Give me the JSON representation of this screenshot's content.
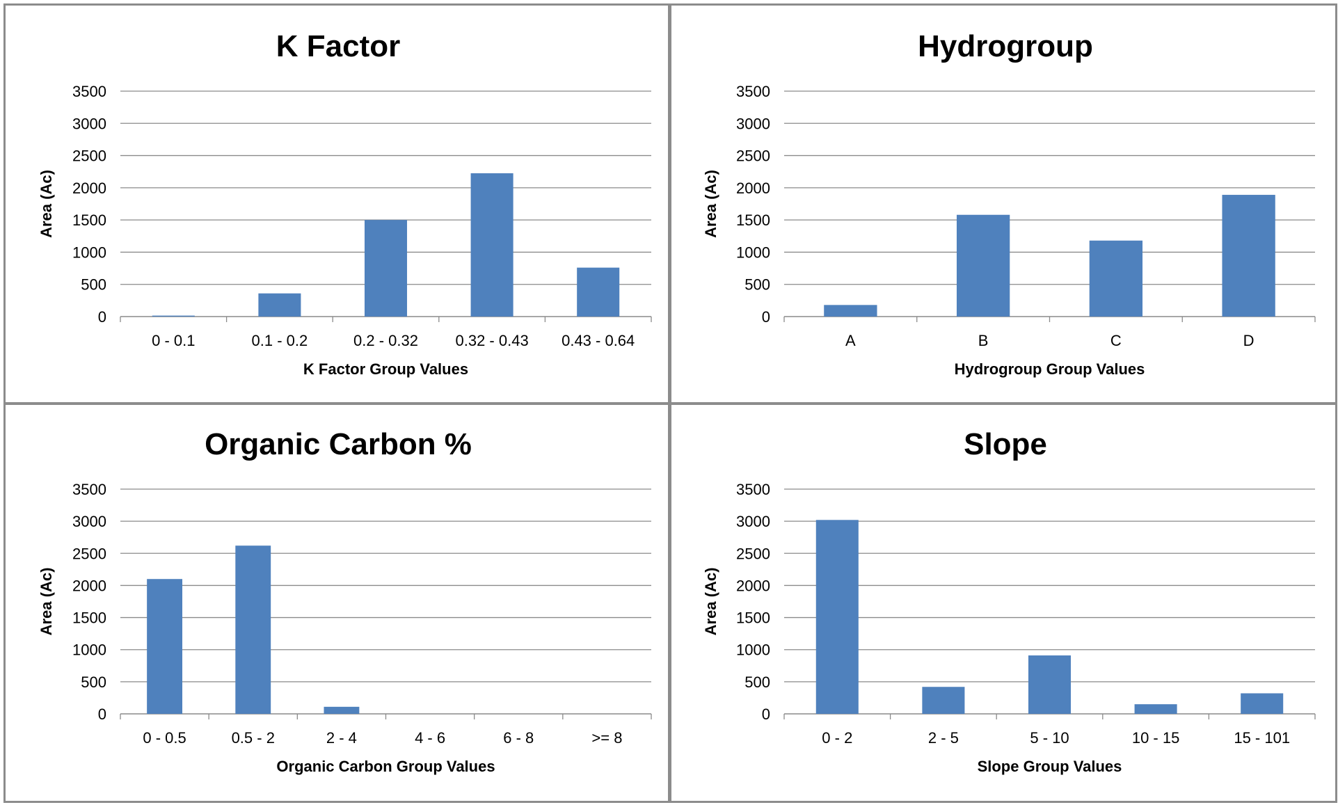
{
  "chart_data": [
    {
      "type": "bar",
      "title": "K Factor",
      "xlabel": "K Factor Group Values",
      "ylabel": "Area (Ac)",
      "categories": [
        "0 - 0.1",
        "0.1 - 0.2",
        "0.2 - 0.32",
        "0.32 - 0.43",
        "0.43 - 0.64"
      ],
      "values": [
        15,
        360,
        1500,
        2225,
        760
      ],
      "ylim": [
        0,
        3500
      ],
      "yticks": [
        "0",
        "500",
        "1000",
        "1500",
        "2000",
        "2500",
        "3000",
        "3500"
      ],
      "grid": true,
      "legend": "none",
      "bar_color": "#4f81bd"
    },
    {
      "type": "bar",
      "title": "Hydrogroup",
      "xlabel": "Hydrogroup Group Values",
      "ylabel": "Area (Ac)",
      "categories": [
        "A",
        "B",
        "C",
        "D"
      ],
      "values": [
        180,
        1580,
        1180,
        1890
      ],
      "ylim": [
        0,
        3500
      ],
      "yticks": [
        "0",
        "500",
        "1000",
        "1500",
        "2000",
        "2500",
        "3000",
        "3500"
      ],
      "grid": true,
      "legend": "none",
      "bar_color": "#4f81bd"
    },
    {
      "type": "bar",
      "title": "Organic Carbon %",
      "xlabel": "Organic Carbon Group Values",
      "ylabel": "Area (Ac)",
      "categories": [
        "0 - 0.5",
        "0.5 - 2",
        "2 - 4",
        "4 - 6",
        "6 - 8",
        ">= 8"
      ],
      "values": [
        2100,
        2620,
        110,
        0,
        0,
        0
      ],
      "ylim": [
        0,
        3500
      ],
      "yticks": [
        "0",
        "500",
        "1000",
        "1500",
        "2000",
        "2500",
        "3000",
        "3500"
      ],
      "grid": true,
      "legend": "none",
      "bar_color": "#4f81bd"
    },
    {
      "type": "bar",
      "title": "Slope",
      "xlabel": "Slope Group Values",
      "ylabel": "Area (Ac)",
      "categories": [
        "0 - 2",
        "2 - 5",
        "5 - 10",
        "10 - 15",
        "15 - 101"
      ],
      "values": [
        3020,
        420,
        910,
        150,
        320
      ],
      "ylim": [
        0,
        3500
      ],
      "yticks": [
        "0",
        "500",
        "1000",
        "1500",
        "2000",
        "2500",
        "3000",
        "3500"
      ],
      "grid": true,
      "legend": "none",
      "bar_color": "#4f81bd"
    }
  ]
}
